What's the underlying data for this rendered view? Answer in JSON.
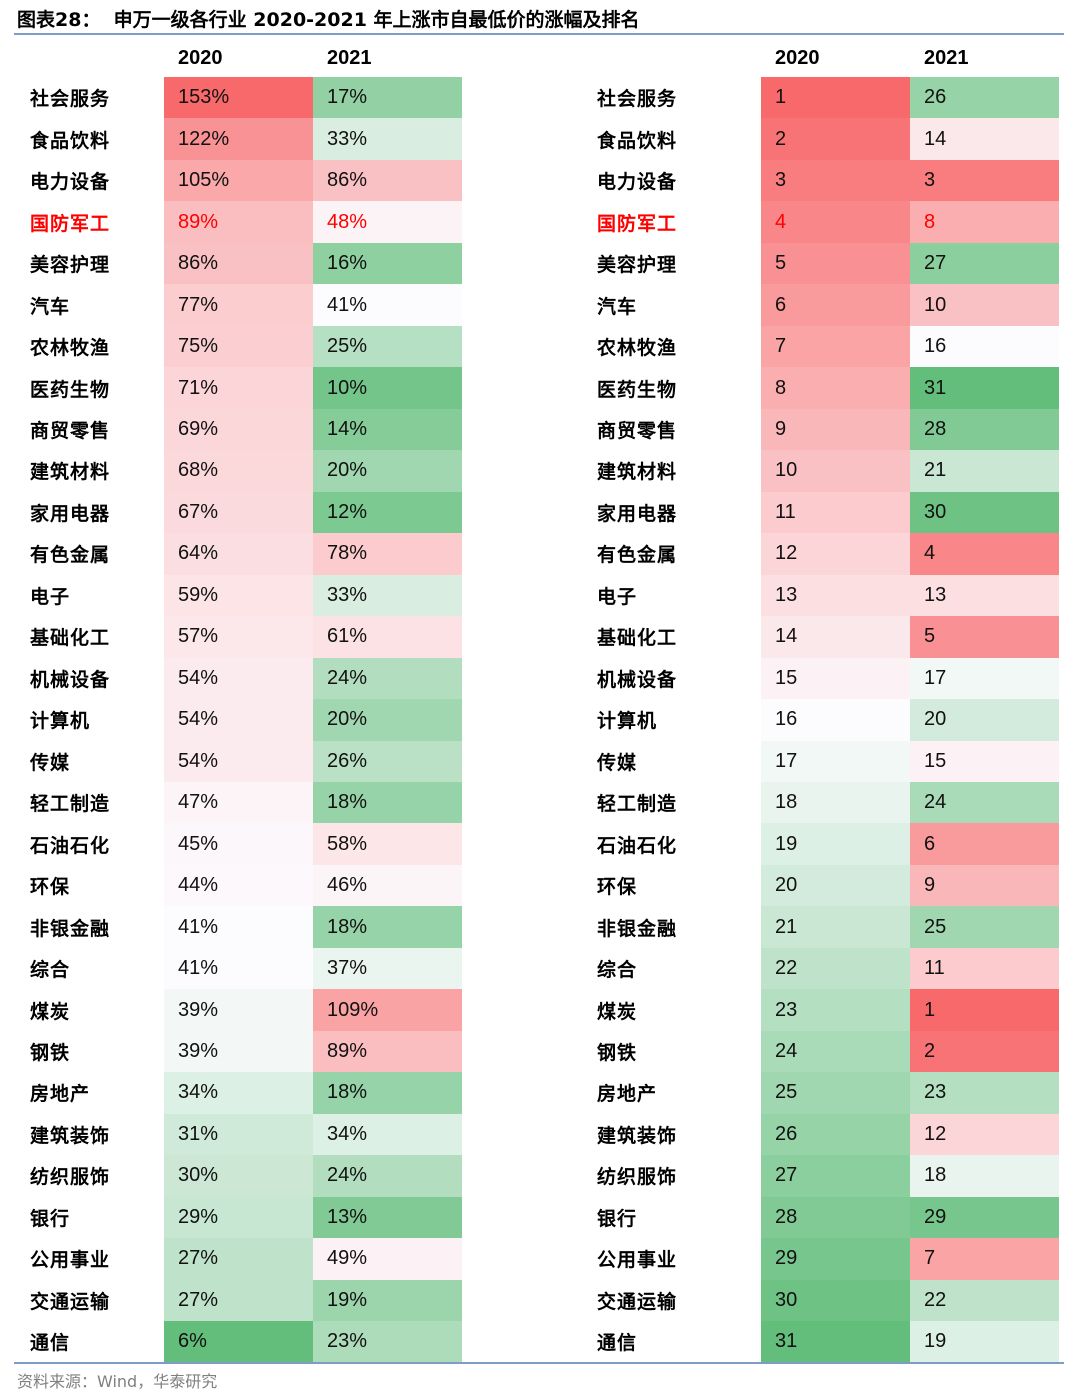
{
  "chart_data": {
    "type": "table",
    "title": "图表28：  申万一级各行业 2020-2021 年上涨市自最低价的涨幅及排名",
    "source": "资料来源：Wind，华泰研究",
    "rule_color": "#7F9CC4",
    "color_scale": {
      "low": "#63BE7B",
      "mid": "#FCFCFF",
      "high": "#F8696B"
    },
    "highlight": {
      "industry": "国防军工",
      "color": "#FF0000"
    },
    "gain_table": {
      "headers": [
        "2020",
        "2021"
      ],
      "rows": [
        {
          "industry": "社会服务",
          "values": [
            "153%",
            "17%"
          ],
          "colors": [
            "#F8696B",
            "#93D1A4"
          ]
        },
        {
          "industry": "食品饮料",
          "values": [
            "122%",
            "33%"
          ],
          "colors": [
            "#F99294",
            "#D9EEE1"
          ]
        },
        {
          "industry": "电力设备",
          "values": [
            "105%",
            "86%"
          ],
          "colors": [
            "#FAA8AA",
            "#FAC1C4"
          ]
        },
        {
          "industry": "国防军工",
          "values": [
            "89%",
            "48%"
          ],
          "colors": [
            "#FABDC0",
            "#FCF3F6"
          ]
        },
        {
          "industry": "美容护理",
          "values": [
            "86%",
            "16%"
          ],
          "colors": [
            "#FAC1C4",
            "#8FD0A1"
          ]
        },
        {
          "industry": "汽车",
          "values": [
            "77%",
            "41%"
          ],
          "colors": [
            "#FBCDCF",
            "#FCFCFF"
          ]
        },
        {
          "industry": "农林牧渔",
          "values": [
            "75%",
            "25%"
          ],
          "colors": [
            "#FBCFD2",
            "#B6E0C3"
          ]
        },
        {
          "industry": "医药生物",
          "values": [
            "71%",
            "10%"
          ],
          "colors": [
            "#FBD5D7",
            "#74C58A"
          ]
        },
        {
          "industry": "商贸零售",
          "values": [
            "69%",
            "14%"
          ],
          "colors": [
            "#FBD7DA",
            "#86CC99"
          ]
        },
        {
          "industry": "建筑材料",
          "values": [
            "68%",
            "20%"
          ],
          "colors": [
            "#FBD9DB",
            "#A0D7B0"
          ]
        },
        {
          "industry": "家用电器",
          "values": [
            "67%",
            "12%"
          ],
          "colors": [
            "#FBDADD",
            "#7DC992"
          ]
        },
        {
          "industry": "有色金属",
          "values": [
            "64%",
            "78%"
          ],
          "colors": [
            "#FBDEE1",
            "#FBCBCE"
          ]
        },
        {
          "industry": "电子",
          "values": [
            "59%",
            "33%"
          ],
          "colors": [
            "#FCE4E7",
            "#D9EEE1"
          ]
        },
        {
          "industry": "基础化工",
          "values": [
            "57%",
            "61%"
          ],
          "colors": [
            "#FCE7EA",
            "#FCE2E5"
          ]
        },
        {
          "industry": "机械设备",
          "values": [
            "54%",
            "24%"
          ],
          "colors": [
            "#FCEBEE",
            "#B2DEBF"
          ]
        },
        {
          "industry": "计算机",
          "values": [
            "54%",
            "20%"
          ],
          "colors": [
            "#FCEBEE",
            "#A0D7B0"
          ]
        },
        {
          "industry": "传媒",
          "values": [
            "54%",
            "26%"
          ],
          "colors": [
            "#FCEBEE",
            "#BAE1C6"
          ]
        },
        {
          "industry": "轻工制造",
          "values": [
            "47%",
            "18%"
          ],
          "colors": [
            "#FCF4F7",
            "#97D3A8"
          ]
        },
        {
          "industry": "石油石化",
          "values": [
            "45%",
            "58%"
          ],
          "colors": [
            "#FCF7FA",
            "#FCE6E8"
          ]
        },
        {
          "industry": "环保",
          "values": [
            "44%",
            "46%"
          ],
          "colors": [
            "#FCF8FB",
            "#FCF5F8"
          ]
        },
        {
          "industry": "非银金融",
          "values": [
            "41%",
            "18%"
          ],
          "colors": [
            "#FCFCFF",
            "#97D3A8"
          ]
        },
        {
          "industry": "综合",
          "values": [
            "41%",
            "37%"
          ],
          "colors": [
            "#FCFCFF",
            "#EAF5F0"
          ]
        },
        {
          "industry": "煤炭",
          "values": [
            "39%",
            "109%"
          ],
          "colors": [
            "#F3F8F7",
            "#FAA3A5"
          ]
        },
        {
          "industry": "钢铁",
          "values": [
            "39%",
            "89%"
          ],
          "colors": [
            "#F3F8F7",
            "#FABDC0"
          ]
        },
        {
          "industry": "房地产",
          "values": [
            "34%",
            "18%"
          ],
          "colors": [
            "#DDF0E5",
            "#97D3A8"
          ]
        },
        {
          "industry": "建筑装饰",
          "values": [
            "31%",
            "34%"
          ],
          "colors": [
            "#D0EAD9",
            "#DDF0E5"
          ]
        },
        {
          "industry": "纺织服饰",
          "values": [
            "30%",
            "24%"
          ],
          "colors": [
            "#CCE8D5",
            "#B2DEBF"
          ]
        },
        {
          "industry": "银行",
          "values": [
            "29%",
            "13%"
          ],
          "colors": [
            "#C7E7D2",
            "#82CA95"
          ]
        },
        {
          "industry": "公用事业",
          "values": [
            "27%",
            "49%"
          ],
          "colors": [
            "#BFE3CA",
            "#FCF1F4"
          ]
        },
        {
          "industry": "交通运输",
          "values": [
            "27%",
            "19%"
          ],
          "colors": [
            "#BFE3CA",
            "#9CD5AC"
          ]
        },
        {
          "industry": "通信",
          "values": [
            "6%",
            "23%"
          ],
          "colors": [
            "#63BE7B",
            "#ADDCBB"
          ]
        }
      ]
    },
    "rank_table": {
      "headers": [
        "2020",
        "2021"
      ],
      "rows": [
        {
          "industry": "社会服务",
          "values": [
            "1",
            "26"
          ],
          "colors": [
            "#F8696B",
            "#96D3A7"
          ]
        },
        {
          "industry": "食品饮料",
          "values": [
            "2",
            "14"
          ],
          "colors": [
            "#F87375",
            "#FBE8EB"
          ]
        },
        {
          "industry": "电力设备",
          "values": [
            "3",
            "3"
          ],
          "colors": [
            "#F97D7F",
            "#F97D7F"
          ]
        },
        {
          "industry": "国防军工",
          "values": [
            "4",
            "8"
          ],
          "colors": [
            "#F98689",
            "#FAAEB0"
          ]
        },
        {
          "industry": "美容护理",
          "values": [
            "5",
            "27"
          ],
          "colors": [
            "#F99093",
            "#8CCF9E"
          ]
        },
        {
          "industry": "汽车",
          "values": [
            "6",
            "10"
          ],
          "colors": [
            "#F99A9C",
            "#FAC1C4"
          ]
        },
        {
          "industry": "农林牧渔",
          "values": [
            "7",
            "16"
          ],
          "colors": [
            "#FAA4A6",
            "#FCFCFF"
          ]
        },
        {
          "industry": "医药生物",
          "values": [
            "8",
            "31"
          ],
          "colors": [
            "#FAAEB0",
            "#63BE7B"
          ]
        },
        {
          "industry": "商贸零售",
          "values": [
            "9",
            "28"
          ],
          "colors": [
            "#FAB7BA",
            "#82CA95"
          ]
        },
        {
          "industry": "建筑材料",
          "values": [
            "10",
            "21"
          ],
          "colors": [
            "#FAC1C4",
            "#C9E7D3"
          ]
        },
        {
          "industry": "家用电器",
          "values": [
            "11",
            "30"
          ],
          "colors": [
            "#FBCBCE",
            "#6DC284"
          ]
        },
        {
          "industry": "有色金属",
          "values": [
            "12",
            "4"
          ],
          "colors": [
            "#FBD5D7",
            "#F98689"
          ]
        },
        {
          "industry": "电子",
          "values": [
            "13",
            "13"
          ],
          "colors": [
            "#FBDFE1",
            "#FBDFE1"
          ]
        },
        {
          "industry": "基础化工",
          "values": [
            "14",
            "5"
          ],
          "colors": [
            "#FBE8EB",
            "#F99093"
          ]
        },
        {
          "industry": "机械设备",
          "values": [
            "15",
            "17"
          ],
          "colors": [
            "#FCF2F5",
            "#F2F8F6"
          ]
        },
        {
          "industry": "计算机",
          "values": [
            "16",
            "20"
          ],
          "colors": [
            "#FCFCFF",
            "#D3EBDC"
          ]
        },
        {
          "industry": "传媒",
          "values": [
            "17",
            "15"
          ],
          "colors": [
            "#F2F8F6",
            "#FCF2F5"
          ]
        },
        {
          "industry": "轻工制造",
          "values": [
            "18",
            "24"
          ],
          "colors": [
            "#E8F4ED",
            "#AADBB9"
          ]
        },
        {
          "industry": "石油石化",
          "values": [
            "19",
            "6"
          ],
          "colors": [
            "#DDF0E5",
            "#F99A9C"
          ]
        },
        {
          "industry": "环保",
          "values": [
            "20",
            "9"
          ],
          "colors": [
            "#D3EBDC",
            "#FAB7BA"
          ]
        },
        {
          "industry": "非银金融",
          "values": [
            "21",
            "25"
          ],
          "colors": [
            "#C9E7D3",
            "#A0D7B0"
          ]
        },
        {
          "industry": "综合",
          "values": [
            "22",
            "11"
          ],
          "colors": [
            "#BFE3CA",
            "#FBCBCE"
          ]
        },
        {
          "industry": "煤炭",
          "values": [
            "23",
            "1"
          ],
          "colors": [
            "#B5DFC1",
            "#F8696B"
          ]
        },
        {
          "industry": "钢铁",
          "values": [
            "24",
            "2"
          ],
          "colors": [
            "#AADBB9",
            "#F87375"
          ]
        },
        {
          "industry": "房地产",
          "values": [
            "25",
            "23"
          ],
          "colors": [
            "#A0D7B0",
            "#B5DFC1"
          ]
        },
        {
          "industry": "建筑装饰",
          "values": [
            "26",
            "12"
          ],
          "colors": [
            "#96D3A7",
            "#FBD5D7"
          ]
        },
        {
          "industry": "纺织服饰",
          "values": [
            "27",
            "18"
          ],
          "colors": [
            "#8CCF9E",
            "#E8F4ED"
          ]
        },
        {
          "industry": "银行",
          "values": [
            "28",
            "29"
          ],
          "colors": [
            "#82CA95",
            "#77C68D"
          ]
        },
        {
          "industry": "公用事业",
          "values": [
            "29",
            "7"
          ],
          "colors": [
            "#77C68D",
            "#FAA4A6"
          ]
        },
        {
          "industry": "交通运输",
          "values": [
            "30",
            "22"
          ],
          "colors": [
            "#6DC284",
            "#BFE3CA"
          ]
        },
        {
          "industry": "通信",
          "values": [
            "31",
            "19"
          ],
          "colors": [
            "#63BE7B",
            "#DDF0E5"
          ]
        }
      ]
    }
  }
}
